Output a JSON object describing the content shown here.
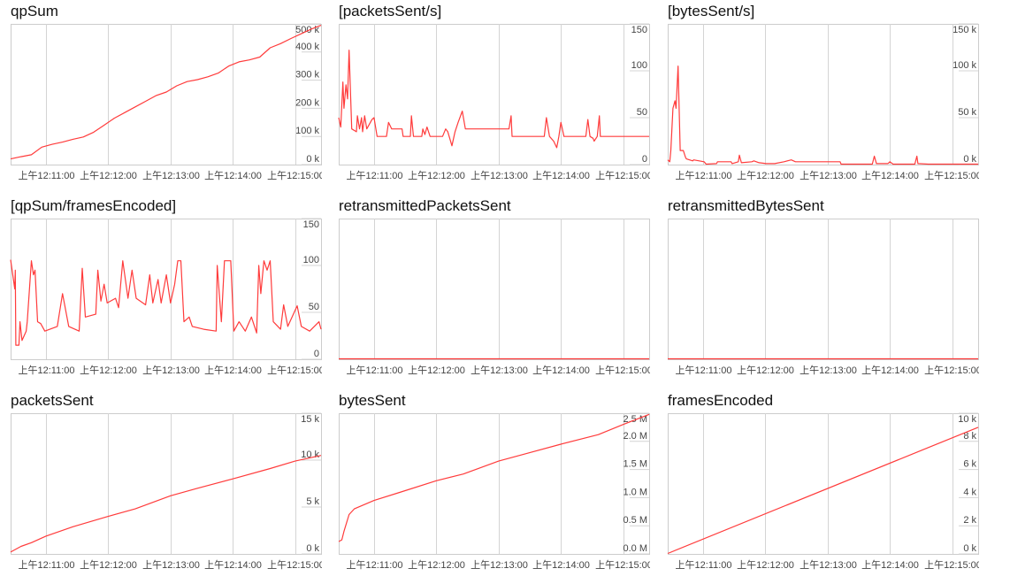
{
  "x_axis": {
    "range_start": "12:10:26",
    "range_seconds": 299,
    "tick_offsets_s": [
      34,
      94,
      154,
      214,
      274
    ],
    "tick_labels": [
      "上午12:11:00",
      "上午12:12:00",
      "上午12:13:00",
      "上午12:14:00",
      "上午12:15:00"
    ]
  },
  "colors": {
    "line": "#ff3b3b",
    "grid": "#d4d4d4",
    "frame": "#cccccc",
    "tick_text": "#444444"
  },
  "chart_data": [
    {
      "id": "qpSum",
      "type": "line",
      "title": "qpSum",
      "ylim": [
        0,
        500
      ],
      "yticks": [
        0,
        100,
        200,
        300,
        400,
        500
      ],
      "ytick_labels": [
        "0 k",
        "100 k",
        "200 k",
        "300 k",
        "400 k",
        "500 k"
      ],
      "unit": "k",
      "points": [
        [
          0,
          20
        ],
        [
          10,
          28
        ],
        [
          20,
          35
        ],
        [
          30,
          62
        ],
        [
          40,
          72
        ],
        [
          50,
          80
        ],
        [
          60,
          90
        ],
        [
          70,
          98
        ],
        [
          80,
          115
        ],
        [
          90,
          140
        ],
        [
          100,
          165
        ],
        [
          110,
          185
        ],
        [
          120,
          205
        ],
        [
          130,
          225
        ],
        [
          140,
          245
        ],
        [
          150,
          258
        ],
        [
          160,
          280
        ],
        [
          170,
          295
        ],
        [
          180,
          302
        ],
        [
          190,
          312
        ],
        [
          200,
          325
        ],
        [
          210,
          350
        ],
        [
          220,
          365
        ],
        [
          230,
          372
        ],
        [
          240,
          382
        ],
        [
          250,
          415
        ],
        [
          260,
          430
        ],
        [
          270,
          448
        ],
        [
          280,
          465
        ],
        [
          290,
          482
        ],
        [
          299,
          495
        ]
      ]
    },
    {
      "id": "qpSumPerFrame",
      "type": "line",
      "title": "[qpSum/framesEncoded]",
      "ylim": [
        0,
        150
      ],
      "yticks": [
        0,
        50,
        100,
        150
      ],
      "ytick_labels": [
        "0",
        "50",
        "100",
        "150"
      ],
      "points": [
        [
          0,
          106
        ],
        [
          4,
          75
        ],
        [
          4.5,
          95
        ],
        [
          5,
          15
        ],
        [
          8,
          15
        ],
        [
          9,
          40
        ],
        [
          11,
          20
        ],
        [
          15,
          30
        ],
        [
          16,
          40
        ],
        [
          20,
          105
        ],
        [
          22,
          90
        ],
        [
          23.5,
          95
        ],
        [
          26,
          40
        ],
        [
          29,
          38
        ],
        [
          33,
          30
        ],
        [
          45,
          35
        ],
        [
          50,
          70
        ],
        [
          56,
          35
        ],
        [
          66,
          30
        ],
        [
          69,
          97
        ],
        [
          72,
          45
        ],
        [
          82,
          48
        ],
        [
          84,
          95
        ],
        [
          87,
          62
        ],
        [
          90,
          80
        ],
        [
          93,
          60
        ],
        [
          101,
          65
        ],
        [
          104,
          55
        ],
        [
          108,
          105
        ],
        [
          113,
          65
        ],
        [
          117,
          95
        ],
        [
          121,
          65
        ],
        [
          130,
          58
        ],
        [
          134,
          90
        ],
        [
          137,
          60
        ],
        [
          142,
          85
        ],
        [
          145,
          60
        ],
        [
          150,
          90
        ],
        [
          154,
          60
        ],
        [
          158,
          80
        ],
        [
          161,
          105
        ],
        [
          164,
          105
        ],
        [
          167,
          40
        ],
        [
          172,
          45
        ],
        [
          175,
          35
        ],
        [
          186,
          32
        ],
        [
          198,
          30
        ],
        [
          199,
          100
        ],
        [
          203,
          40
        ],
        [
          206,
          105
        ],
        [
          212,
          105
        ],
        [
          215,
          30
        ],
        [
          220,
          40
        ],
        [
          226,
          30
        ],
        [
          232,
          45
        ],
        [
          237,
          28
        ],
        [
          239,
          100
        ],
        [
          241,
          70
        ],
        [
          244,
          105
        ],
        [
          247,
          95
        ],
        [
          250,
          105
        ],
        [
          253,
          40
        ],
        [
          260,
          32
        ],
        [
          263,
          58
        ],
        [
          267,
          35
        ],
        [
          276,
          57
        ],
        [
          280,
          35
        ],
        [
          288,
          30
        ],
        [
          297,
          40
        ],
        [
          299,
          32
        ]
      ]
    },
    {
      "id": "packetsSent",
      "type": "line",
      "title": "packetsSent",
      "ylim": [
        0,
        15
      ],
      "yticks": [
        0,
        5,
        10,
        15
      ],
      "ytick_labels": [
        "0 k",
        "5 k",
        "10 k",
        "15 k"
      ],
      "unit": "k",
      "points": [
        [
          0,
          0.2
        ],
        [
          10,
          0.8
        ],
        [
          20,
          1.2
        ],
        [
          34,
          1.9
        ],
        [
          60,
          2.9
        ],
        [
          94,
          4.0
        ],
        [
          120,
          4.8
        ],
        [
          154,
          6.2
        ],
        [
          180,
          7.0
        ],
        [
          214,
          8.0
        ],
        [
          250,
          9.1
        ],
        [
          274,
          9.9
        ],
        [
          299,
          10.5
        ]
      ]
    },
    {
      "id": "packetsSentPerSec",
      "type": "line",
      "title": "[packetsSent/s]",
      "ylim": [
        0,
        150
      ],
      "yticks": [
        0,
        50,
        100,
        150
      ],
      "ytick_labels": [
        "0",
        "50",
        "100",
        "150"
      ],
      "points": [
        [
          0,
          50
        ],
        [
          2,
          40
        ],
        [
          4,
          88
        ],
        [
          5,
          60
        ],
        [
          7,
          85
        ],
        [
          8.5,
          70
        ],
        [
          10,
          122
        ],
        [
          12.5,
          38
        ],
        [
          17,
          35
        ],
        [
          18,
          52
        ],
        [
          20,
          38
        ],
        [
          22,
          50
        ],
        [
          23,
          35
        ],
        [
          25,
          52
        ],
        [
          27,
          38
        ],
        [
          32,
          48
        ],
        [
          34,
          50
        ],
        [
          37,
          30
        ],
        [
          46,
          30
        ],
        [
          48,
          45
        ],
        [
          51,
          38
        ],
        [
          61,
          38
        ],
        [
          62,
          30
        ],
        [
          69,
          30
        ],
        [
          70,
          52
        ],
        [
          72,
          30
        ],
        [
          80,
          30
        ],
        [
          81,
          38
        ],
        [
          83,
          32
        ],
        [
          85,
          40
        ],
        [
          88,
          30
        ],
        [
          100,
          30
        ],
        [
          103,
          38
        ],
        [
          105,
          35
        ],
        [
          109,
          20
        ],
        [
          112,
          35
        ],
        [
          115,
          45
        ],
        [
          119,
          57
        ],
        [
          122,
          38
        ],
        [
          160,
          38
        ],
        [
          164,
          38
        ],
        [
          166,
          52
        ],
        [
          167,
          30
        ],
        [
          198,
          30
        ],
        [
          200,
          50
        ],
        [
          203,
          30
        ],
        [
          207,
          25
        ],
        [
          210,
          18
        ],
        [
          212,
          30
        ],
        [
          214,
          45
        ],
        [
          217,
          30
        ],
        [
          238,
          30
        ],
        [
          240,
          48
        ],
        [
          242,
          30
        ],
        [
          245,
          28
        ],
        [
          246,
          25
        ],
        [
          249,
          30
        ],
        [
          251,
          52
        ],
        [
          252,
          30
        ],
        [
          299,
          30
        ]
      ]
    },
    {
      "id": "retransmittedPacketsSent",
      "type": "line",
      "title": "retransmittedPacketsSent",
      "ylim": [
        0,
        1
      ],
      "yticks": [],
      "ytick_labels": [],
      "points": [
        [
          0,
          0
        ],
        [
          299,
          0
        ]
      ]
    },
    {
      "id": "bytesSent",
      "type": "line",
      "title": "bytesSent",
      "ylim": [
        0,
        2.5
      ],
      "yticks": [
        0,
        0.5,
        1,
        1.5,
        2,
        2.5
      ],
      "ytick_labels": [
        "0.0 M",
        "0.5 M",
        "1.0 M",
        "1.5 M",
        "2.0 M",
        "2.5 M"
      ],
      "unit": "M",
      "points": [
        [
          0,
          0.22
        ],
        [
          3,
          0.25
        ],
        [
          5,
          0.4
        ],
        [
          10,
          0.7
        ],
        [
          15,
          0.8
        ],
        [
          34,
          0.95
        ],
        [
          60,
          1.1
        ],
        [
          94,
          1.3
        ],
        [
          120,
          1.42
        ],
        [
          154,
          1.65
        ],
        [
          180,
          1.78
        ],
        [
          214,
          1.95
        ],
        [
          250,
          2.12
        ],
        [
          274,
          2.3
        ],
        [
          299,
          2.48
        ]
      ]
    },
    {
      "id": "bytesSentPerSec",
      "type": "line",
      "title": "[bytesSent/s]",
      "ylim": [
        0,
        150
      ],
      "yticks": [
        0,
        50,
        100,
        150
      ],
      "ytick_labels": [
        "0 k",
        "50 k",
        "100 k",
        "150 k"
      ],
      "unit": "k",
      "points": [
        [
          0,
          5
        ],
        [
          2,
          3
        ],
        [
          3,
          15
        ],
        [
          5,
          60
        ],
        [
          7,
          68
        ],
        [
          8,
          60
        ],
        [
          10,
          105
        ],
        [
          12,
          15
        ],
        [
          15,
          15
        ],
        [
          17,
          8
        ],
        [
          18,
          6
        ],
        [
          21,
          5
        ],
        [
          24,
          4
        ],
        [
          25,
          5
        ],
        [
          35,
          3
        ],
        [
          37,
          0.5
        ],
        [
          47,
          1
        ],
        [
          48,
          3
        ],
        [
          61,
          3
        ],
        [
          62,
          1
        ],
        [
          68,
          3
        ],
        [
          69,
          10
        ],
        [
          71,
          2
        ],
        [
          81,
          3
        ],
        [
          83,
          4
        ],
        [
          88,
          2
        ],
        [
          95,
          1
        ],
        [
          103,
          1
        ],
        [
          112,
          3
        ],
        [
          119,
          5
        ],
        [
          123,
          3
        ],
        [
          154,
          3
        ],
        [
          166,
          3
        ],
        [
          167,
          0.5
        ],
        [
          197,
          0.5
        ],
        [
          199,
          9
        ],
        [
          201,
          1
        ],
        [
          212,
          1
        ],
        [
          214,
          3
        ],
        [
          217,
          0.5
        ],
        [
          238,
          0.5
        ],
        [
          240,
          9
        ],
        [
          241,
          1
        ],
        [
          251,
          0.5
        ],
        [
          299,
          0.5
        ]
      ]
    },
    {
      "id": "retransmittedBytesSent",
      "type": "line",
      "title": "retransmittedBytesSent",
      "ylim": [
        0,
        1
      ],
      "yticks": [],
      "ytick_labels": [],
      "points": [
        [
          0,
          0
        ],
        [
          299,
          0
        ]
      ]
    },
    {
      "id": "framesEncoded",
      "type": "line",
      "title": "framesEncoded",
      "ylim": [
        0,
        10
      ],
      "yticks": [
        0,
        2,
        4,
        6,
        8,
        10
      ],
      "ytick_labels": [
        "0 k",
        "2 k",
        "4 k",
        "6 k",
        "8 k",
        "10 k"
      ],
      "unit": "k",
      "points": [
        [
          0,
          0
        ],
        [
          299,
          9.0
        ]
      ]
    }
  ]
}
